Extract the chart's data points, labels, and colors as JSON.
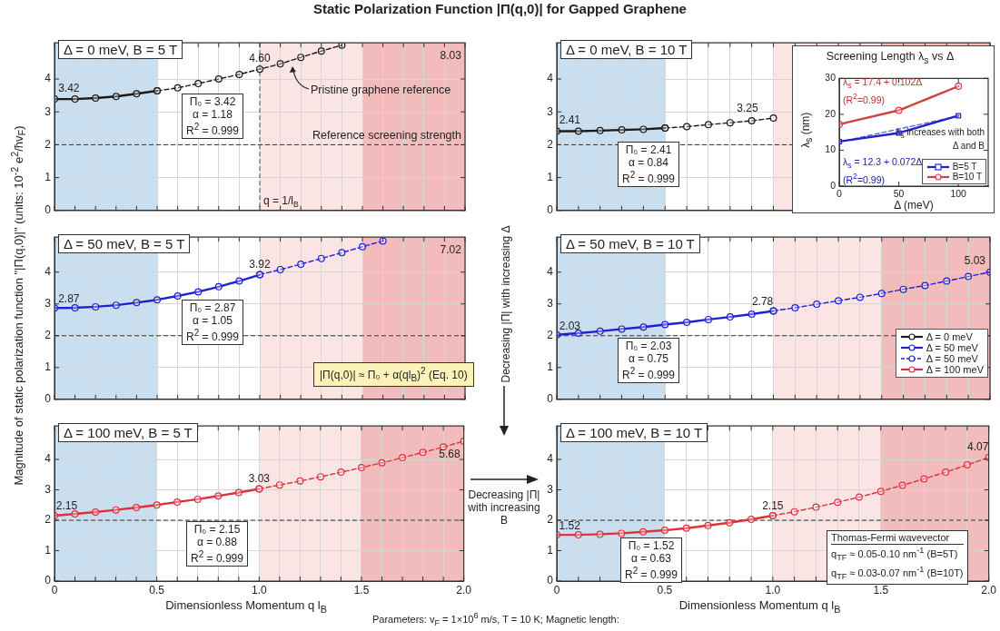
{
  "chart_data": [
    {
      "type": "line",
      "title": "Static Polarization Function |Π(q,0)| for Gapped Graphene",
      "ylabel": "Magnitude of static polarization function \"|Π(q,0)|\" (units: 10$^{-2}$ e$^{2}$/ħv$_{F}$)",
      "marker": "circle",
      "grid": true,
      "tick_labels": "y",
      "xlim": [
        0,
        2
      ],
      "ylim": [
        0,
        5.1
      ],
      "yticks": [
        0,
        1,
        2,
        3,
        4
      ],
      "xticks": [
        0,
        0.1,
        0.2,
        0.3,
        0.4,
        0.5,
        0.6,
        0.7,
        0.8,
        0.9,
        1,
        1.1,
        1.2,
        1.3,
        1.4,
        1.5,
        1.6,
        1.7,
        1.8,
        1.9,
        2
      ],
      "bands": [
        {
          "axis": "x",
          "from": 0,
          "to": 0.5,
          "color": "#c9dff0"
        },
        {
          "axis": "x",
          "from": 1,
          "to": 1.5,
          "color": "#fbe4e4"
        },
        {
          "axis": "x",
          "from": 1.5,
          "to": 2,
          "color": "#f2bcbc"
        }
      ],
      "ref_lines": [
        {
          "axis": "y",
          "value": 2,
          "label": "Reference screening strength",
          "line_style": "dashed",
          "color": "#333333"
        },
        {
          "axis": "x",
          "value": 1,
          "label": "q = 1/l$_{B}$",
          "line_style": "dashed",
          "color": "#555555"
        }
      ],
      "series": [
        {
          "x": [
            0,
            0.1,
            0.2,
            0.3,
            0.4,
            0.5
          ],
          "values": [
            3.39,
            3.39,
            3.42,
            3.47,
            3.55,
            3.64
          ],
          "color": "#1a1a1a"
        },
        {
          "x": [
            0.5,
            0.6,
            0.7,
            0.8,
            0.9,
            1,
            1.1,
            1.2,
            1.3,
            1.4
          ],
          "values": [
            3.64,
            3.73,
            3.86,
            4.0,
            4.14,
            4.3,
            4.46,
            4.66,
            4.85,
            5.03
          ],
          "color": "#1a1a1a",
          "line_style": "dashed"
        }
      ],
      "annotations": [
        "Δ = 0 meV, B = 5 T",
        "Π₀ = 3.42",
        "α = 1.18",
        "R$^{2}$ = 0.999",
        "Decreasing |Π| with increasing Δ",
        "3.42",
        "4.60",
        "8.03",
        {
          "text": "Pristine graphene reference",
          "x": 1.15,
          "y": 4.47
        }
      ]
    },
    {
      "type": "line",
      "marker": "circle",
      "grid": true,
      "xlim": [
        0,
        2
      ],
      "ylim": [
        0,
        5.1
      ],
      "yticks": [
        0,
        1,
        2,
        3,
        4
      ],
      "tick_labels": "y",
      "xticks": [
        0,
        0.1,
        0.2,
        0.3,
        0.4,
        0.5,
        0.6,
        0.7,
        0.8,
        0.9,
        1,
        1.1,
        1.2,
        1.3,
        1.4,
        1.5,
        1.6,
        1.7,
        1.8,
        1.9,
        2
      ],
      "bands": [
        {
          "axis": "x",
          "from": 0,
          "to": 0.5,
          "color": "#c9dff0"
        },
        {
          "axis": "x",
          "from": 1,
          "to": 1.5,
          "color": "#fbe4e4"
        },
        {
          "axis": "x",
          "from": 1.5,
          "to": 2,
          "color": "#f2bcbc"
        }
      ],
      "ref_lines": [
        {
          "axis": "y",
          "value": 2,
          "line_style": "dashed",
          "color": "#333333"
        }
      ],
      "series": [
        {
          "x": [
            0,
            0.1,
            0.2,
            0.3,
            0.4,
            0.5
          ],
          "values": [
            2.41,
            2.41,
            2.43,
            2.45,
            2.47,
            2.51
          ],
          "color": "#1a1a1a"
        },
        {
          "x": [
            0.5,
            0.6,
            0.7,
            0.8,
            0.9,
            1
          ],
          "values": [
            2.51,
            2.55,
            2.61,
            2.67,
            2.73,
            2.81
          ],
          "color": "#1a1a1a",
          "line_style": "dashed"
        }
      ],
      "annotations": [
        "Δ = 0 meV, B = 10 T",
        "Π₀ = 2.41",
        "α = 0.84",
        "R$^{2}$ = 0.999",
        "2.41",
        "3.25"
      ]
    },
    {
      "type": "line",
      "title": "Screening Length λ$_{s}$ vs Δ",
      "xlabel": "Δ (meV)",
      "ylabel": "λ$_{s}$ (nm)",
      "legend": "bottom right",
      "xlim": [
        0,
        125
      ],
      "xticks": [
        0,
        50,
        100
      ],
      "ylim": [
        0,
        30
      ],
      "yticks": [
        0,
        10,
        20,
        30
      ],
      "series": [
        {
          "name": "B=5 T",
          "x": [
            0,
            50,
            100
          ],
          "values": [
            12.4,
            14.8,
            19.6
          ],
          "color": "#2222cc",
          "marker": "square"
        },
        {
          "name": "B=10 T",
          "x": [
            0,
            50,
            100
          ],
          "values": [
            17.2,
            21.1,
            27.8
          ],
          "color": "#d04040",
          "marker": "circle"
        },
        {
          "x": [
            0,
            100
          ],
          "values": [
            12.3,
            19.5
          ],
          "color": "#6666dd",
          "marker": "none",
          "line_style": "dashed"
        }
      ],
      "annotations": [
        "λ$_{s}$ = 17.4 + 0.102Δ",
        "(R$^{2}$=0.99)",
        "λ$_{s}$ = 12.3 + 0.072Δ",
        "(R$^{2}$=0.99)",
        "λ$_{s}$ increases with both Δ and B"
      ]
    },
    {
      "type": "line",
      "marker": "circle",
      "grid": true,
      "xlim": [
        0,
        2
      ],
      "ylim": [
        0,
        5.1
      ],
      "yticks": [
        0,
        1,
        2,
        3,
        4
      ],
      "tick_labels": "y",
      "xticks": [
        0,
        0.1,
        0.2,
        0.3,
        0.4,
        0.5,
        0.6,
        0.7,
        0.8,
        0.9,
        1,
        1.1,
        1.2,
        1.3,
        1.4,
        1.5,
        1.6,
        1.7,
        1.8,
        1.9,
        2
      ],
      "bands": [
        {
          "axis": "x",
          "from": 0,
          "to": 0.5,
          "color": "#c9dff0"
        },
        {
          "axis": "x",
          "from": 1,
          "to": 1.5,
          "color": "#fbe4e4"
        },
        {
          "axis": "x",
          "from": 1.5,
          "to": 2,
          "color": "#f2bcbc"
        }
      ],
      "ref_lines": [
        {
          "axis": "y",
          "value": 2,
          "line_style": "dashed",
          "color": "#333333"
        }
      ],
      "series": [
        {
          "x": [
            0,
            0.1,
            0.2,
            0.3,
            0.4,
            0.5,
            0.6,
            0.7,
            0.8,
            0.9,
            1
          ],
          "values": [
            2.87,
            2.88,
            2.91,
            2.96,
            3.04,
            3.13,
            3.25,
            3.38,
            3.54,
            3.72,
            3.92
          ],
          "color": "#1f1fd6"
        },
        {
          "x": [
            1,
            1.1,
            1.2,
            1.3,
            1.4,
            1.5,
            1.6
          ],
          "values": [
            3.92,
            4.08,
            4.25,
            4.43,
            4.61,
            4.8,
            4.98
          ],
          "color": "#1f1fd6",
          "line_style": "dashed"
        }
      ],
      "annotations": [
        "Δ = 50 meV, B = 5 T",
        "Π₀ = 2.87",
        "α = 1.05",
        "R$^{2}$ = 0.999",
        "|Π(q,0)| ≈ Π₀ + α(ql$_{B}$)$^{2}$ (Eq. 10)",
        "2.87",
        "3.92",
        "7.02"
      ]
    },
    {
      "type": "line",
      "marker": "circle",
      "grid": true,
      "legend": "right",
      "xlim": [
        0,
        2
      ],
      "ylim": [
        0,
        5.1
      ],
      "yticks": [
        0,
        1,
        2,
        3,
        4
      ],
      "tick_labels": "y",
      "xticks": [
        0,
        0.1,
        0.2,
        0.3,
        0.4,
        0.5,
        0.6,
        0.7,
        0.8,
        0.9,
        1,
        1.1,
        1.2,
        1.3,
        1.4,
        1.5,
        1.6,
        1.7,
        1.8,
        1.9,
        2
      ],
      "bands": [
        {
          "axis": "x",
          "from": 0,
          "to": 0.5,
          "color": "#c9dff0"
        },
        {
          "axis": "x",
          "from": 1,
          "to": 1.5,
          "color": "#fbe4e4"
        },
        {
          "axis": "x",
          "from": 1.5,
          "to": 2,
          "color": "#f2bcbc"
        }
      ],
      "ref_lines": [
        {
          "axis": "y",
          "value": 2,
          "line_style": "dashed",
          "color": "#333333"
        }
      ],
      "series": [
        {
          "name": "Δ = 0 meV",
          "color": "#1a1a1a"
        },
        {
          "name": "Δ = 50 meV",
          "x": [
            0,
            0.1,
            0.2,
            0.3,
            0.4,
            0.5,
            0.6,
            0.7,
            0.8,
            0.9,
            1
          ],
          "values": [
            2.03,
            2.08,
            2.14,
            2.21,
            2.27,
            2.35,
            2.42,
            2.51,
            2.59,
            2.68,
            2.78
          ],
          "color": "#1f1fd6"
        },
        {
          "name": "Δ = 50 meV",
          "x": [
            1,
            1.1,
            1.2,
            1.3,
            1.4,
            1.5,
            1.6,
            1.7,
            1.8,
            1.9,
            2
          ],
          "values": [
            2.78,
            2.88,
            2.99,
            3.1,
            3.21,
            3.33,
            3.46,
            3.58,
            3.72,
            3.86,
            4.0
          ],
          "color": "#1f1fd6",
          "line_style": "dashed"
        },
        {
          "name": "Δ = 100 meV",
          "color": "#e0303c"
        }
      ],
      "annotations": [
        "Δ = 50 meV, B = 10 T",
        "Π₀ = 2.03",
        "α = 0.75",
        "R$^{2}$ = 0.999",
        "2.03",
        "2.78",
        "5.03"
      ]
    },
    {
      "type": "line",
      "marker": "circle",
      "grid": true,
      "xlabel": "Dimensionless Momentum q l$_{B}$",
      "xlim": [
        0,
        2
      ],
      "ylim": [
        0,
        5.1
      ],
      "yticks": [
        0,
        1,
        2,
        3,
        4
      ],
      "xticks": [
        0,
        {
          "value": 0.1,
          "label": null
        },
        {
          "value": 0.2,
          "label": null
        },
        {
          "value": 0.3,
          "label": null
        },
        {
          "value": 0.4,
          "label": null
        },
        0.5,
        {
          "value": 0.6,
          "label": null
        },
        {
          "value": 0.7,
          "label": null
        },
        {
          "value": 0.8,
          "label": null
        },
        {
          "value": 0.9,
          "label": null
        },
        {
          "value": 1,
          "label": "1.0"
        },
        {
          "value": 1.1,
          "label": null
        },
        {
          "value": 1.2,
          "label": null
        },
        {
          "value": 1.3,
          "label": null
        },
        {
          "value": 1.4,
          "label": null
        },
        1.5,
        {
          "value": 1.6,
          "label": null
        },
        {
          "value": 1.7,
          "label": null
        },
        {
          "value": 1.8,
          "label": null
        },
        {
          "value": 1.9,
          "label": null
        },
        {
          "value": 2,
          "label": "2.0"
        }
      ],
      "bands": [
        {
          "axis": "x",
          "from": 0,
          "to": 0.5,
          "color": "#c9dff0"
        },
        {
          "axis": "x",
          "from": 1,
          "to": 1.5,
          "color": "#fbe4e4"
        },
        {
          "axis": "x",
          "from": 1.5,
          "to": 2,
          "color": "#f2bcbc"
        }
      ],
      "ref_lines": [
        {
          "axis": "y",
          "value": 2,
          "line_style": "dashed",
          "color": "#333333"
        }
      ],
      "series": [
        {
          "x": [
            0,
            0.1,
            0.2,
            0.3,
            0.4,
            0.5,
            0.6,
            0.7,
            0.8,
            0.9,
            1
          ],
          "values": [
            2.15,
            2.21,
            2.27,
            2.34,
            2.42,
            2.5,
            2.6,
            2.69,
            2.8,
            2.91,
            3.03
          ],
          "color": "#e0303c"
        },
        {
          "x": [
            1,
            1.1,
            1.2,
            1.3,
            1.4,
            1.5,
            1.6,
            1.7,
            1.8,
            1.9,
            2
          ],
          "values": [
            3.03,
            3.16,
            3.29,
            3.43,
            3.58,
            3.73,
            3.89,
            4.06,
            4.23,
            4.41,
            4.6
          ],
          "color": "#e0303c",
          "line_style": "dashed"
        }
      ],
      "annotations": [
        "Δ = 100 meV, B = 5 T",
        "Π₀ = 2.15",
        "α = 0.88",
        "R$^{2}$ = 0.999",
        "Decreasing |Π| with increasing B",
        "Parameters: v$_{F}$ = 1×10$^{6}$ m/s, T = 10 K; Magnetic length:",
        "2.15",
        "3.03",
        "5.68"
      ]
    },
    {
      "type": "line",
      "marker": "circle",
      "grid": true,
      "xlabel": "Dimensionless Momentum q l$_{B}$",
      "xlim": [
        0,
        2
      ],
      "ylim": [
        0,
        5.1
      ],
      "yticks": [
        0,
        1,
        2,
        3,
        4
      ],
      "xticks": [
        0,
        {
          "value": 0.1,
          "label": null
        },
        {
          "value": 0.2,
          "label": null
        },
        {
          "value": 0.3,
          "label": null
        },
        {
          "value": 0.4,
          "label": null
        },
        0.5,
        {
          "value": 0.6,
          "label": null
        },
        {
          "value": 0.7,
          "label": null
        },
        {
          "value": 0.8,
          "label": null
        },
        {
          "value": 0.9,
          "label": null
        },
        {
          "value": 1,
          "label": "1.0"
        },
        {
          "value": 1.1,
          "label": null
        },
        {
          "value": 1.2,
          "label": null
        },
        {
          "value": 1.3,
          "label": null
        },
        {
          "value": 1.4,
          "label": null
        },
        1.5,
        {
          "value": 1.6,
          "label": null
        },
        {
          "value": 1.7,
          "label": null
        },
        {
          "value": 1.8,
          "label": null
        },
        {
          "value": 1.9,
          "label": null
        },
        {
          "value": 2,
          "label": "2.0"
        }
      ],
      "bands": [
        {
          "axis": "x",
          "from": 0,
          "to": 0.5,
          "color": "#c9dff0"
        },
        {
          "axis": "x",
          "from": 1,
          "to": 1.5,
          "color": "#fbe4e4"
        },
        {
          "axis": "x",
          "from": 1.5,
          "to": 2,
          "color": "#f2bcbc"
        }
      ],
      "ref_lines": [
        {
          "axis": "y",
          "value": 2,
          "line_style": "dashed",
          "color": "#333333"
        }
      ],
      "series": [
        {
          "x": [
            0,
            0.1,
            0.2,
            0.3,
            0.4,
            0.5,
            0.6,
            0.7,
            0.8,
            0.9,
            1
          ],
          "values": [
            1.52,
            1.52,
            1.54,
            1.57,
            1.62,
            1.67,
            1.74,
            1.83,
            1.92,
            2.03,
            2.15
          ],
          "color": "#e0303c"
        },
        {
          "x": [
            1,
            1.1,
            1.2,
            1.3,
            1.4,
            1.5,
            1.6,
            1.7,
            1.8,
            1.9,
            2
          ],
          "values": [
            2.15,
            2.28,
            2.43,
            2.59,
            2.76,
            2.95,
            3.15,
            3.36,
            3.58,
            3.82,
            4.07
          ],
          "color": "#e0303c",
          "line_style": "dashed"
        }
      ],
      "annotations": [
        "Δ = 100 meV, B = 10 T",
        "Π₀ = 1.52",
        "α = 0.63",
        "R$^{2}$ = 0.999",
        "Thomas-Fermi wavevector",
        "q$_{TF}$ ≈ 0.05-0.10 nm$^{-1}$ (B=5T)",
        "q$_{TF}$ ≈ 0.03-0.07 nm$^{-1}$ (B=10T)",
        "1.52",
        "2.15",
        "4.07"
      ]
    }
  ]
}
